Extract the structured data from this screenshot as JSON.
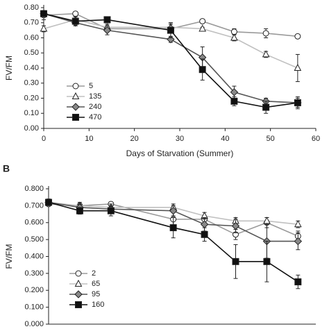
{
  "chart_data": [
    {
      "type": "line",
      "ylabel": "FV/FM",
      "xlabel": "Days of Starvation (Summer)",
      "x": [
        0,
        7,
        14,
        28,
        35,
        42,
        49,
        56
      ],
      "xlim": [
        0,
        60
      ],
      "xticks": [
        0,
        10,
        20,
        30,
        40,
        50,
        60
      ],
      "ylim": [
        0,
        0.8
      ],
      "yticks": [
        {
          "value": 0,
          "label": "0.00"
        },
        {
          "value": 0.1,
          "label": "0.10"
        },
        {
          "value": 0.2,
          "label": "0.20"
        },
        {
          "value": 0.3,
          "label": "0.30"
        },
        {
          "value": 0.4,
          "label": "0.40"
        },
        {
          "value": 0.5,
          "label": "0.50"
        },
        {
          "value": 0.6,
          "label": "0.60"
        },
        {
          "value": 0.7,
          "label": "0.70"
        },
        {
          "value": 0.8,
          "label": "0.80"
        }
      ],
      "legend": "lower-left",
      "series": [
        {
          "name": "5",
          "color": "#9a9a9a",
          "marker": "circle",
          "marker_fill": "#ffffff",
          "values": [
            0.75,
            0.76,
            0.66,
            0.66,
            0.71,
            0.64,
            0.63,
            0.61
          ],
          "errors": [
            0.03,
            0.01,
            0.02,
            0.03,
            0.01,
            0.02,
            0.03,
            0.01
          ]
        },
        {
          "name": "135",
          "color": "#c0c0c0",
          "marker": "triangle",
          "marker_fill": "#ffffff",
          "values": [
            0.66,
            0.72,
            0.67,
            0.67,
            0.66,
            0.6,
            0.49,
            0.4
          ],
          "errors": [
            0.02,
            0.02,
            0.02,
            0.03,
            0.01,
            0.02,
            0.02,
            0.09
          ]
        },
        {
          "name": "240",
          "color": "#555555",
          "marker": "diamond",
          "marker_fill": "#888888",
          "values": [
            0.76,
            0.7,
            0.65,
            0.59,
            0.47,
            0.24,
            0.18,
            0.17
          ],
          "errors": [
            0.02,
            0.02,
            0.03,
            0.02,
            0.07,
            0.04,
            0.02,
            0.03
          ]
        },
        {
          "name": "470",
          "color": "#111111",
          "marker": "square",
          "marker_fill": "#111111",
          "values": [
            0.76,
            0.71,
            0.72,
            0.65,
            0.39,
            0.18,
            0.14,
            0.17
          ],
          "errors": [
            0.02,
            0.03,
            0.02,
            0.05,
            0.07,
            0.03,
            0.04,
            0.04
          ]
        }
      ]
    },
    {
      "type": "line",
      "panel_label": "B",
      "ylabel": "FV/FM",
      "x": [
        0,
        7,
        14,
        28,
        35,
        42,
        49,
        56
      ],
      "xlim": [
        0,
        60
      ],
      "ylim": [
        0,
        0.8
      ],
      "yticks": [
        {
          "value": 0,
          "label": "0.000"
        },
        {
          "value": 0.1,
          "label": "0.100"
        },
        {
          "value": 0.2,
          "label": "0.200"
        },
        {
          "value": 0.3,
          "label": "0.300"
        },
        {
          "value": 0.4,
          "label": "0.400"
        },
        {
          "value": 0.5,
          "label": "0.500"
        },
        {
          "value": 0.6,
          "label": "0.600"
        },
        {
          "value": 0.7,
          "label": "0.700"
        },
        {
          "value": 0.8,
          "label": "0.800"
        }
      ],
      "legend": "lower-left",
      "series": [
        {
          "name": "2",
          "color": "#9a9a9a",
          "marker": "circle",
          "marker_fill": "#ffffff",
          "values": [
            0.71,
            0.7,
            0.71,
            0.62,
            0.62,
            0.53,
            0.6,
            0.52
          ],
          "errors": [
            0.01,
            0.01,
            0.01,
            0.04,
            0.02,
            0.03,
            0.03,
            0.03
          ]
        },
        {
          "name": "65",
          "color": "#c0c0c0",
          "marker": "triangle",
          "marker_fill": "#ffffff",
          "values": [
            0.72,
            0.7,
            0.69,
            0.69,
            0.64,
            0.61,
            0.61,
            0.59
          ],
          "errors": [
            0.01,
            0.02,
            0.02,
            0.02,
            0.02,
            0.02,
            0.02,
            0.02
          ]
        },
        {
          "name": "95",
          "color": "#555555",
          "marker": "diamond",
          "marker_fill": "#888888",
          "values": [
            0.72,
            0.69,
            0.68,
            0.67,
            0.59,
            0.58,
            0.49,
            0.49
          ],
          "errors": [
            0.01,
            0.02,
            0.02,
            0.03,
            0.04,
            0.04,
            0.1,
            0.05
          ]
        },
        {
          "name": "160",
          "color": "#111111",
          "marker": "square",
          "marker_fill": "#111111",
          "values": [
            0.72,
            0.67,
            0.67,
            0.57,
            0.53,
            0.37,
            0.37,
            0.25
          ],
          "errors": [
            0.02,
            0.02,
            0.03,
            0.06,
            0.04,
            0.1,
            0.12,
            0.04
          ]
        }
      ]
    }
  ]
}
